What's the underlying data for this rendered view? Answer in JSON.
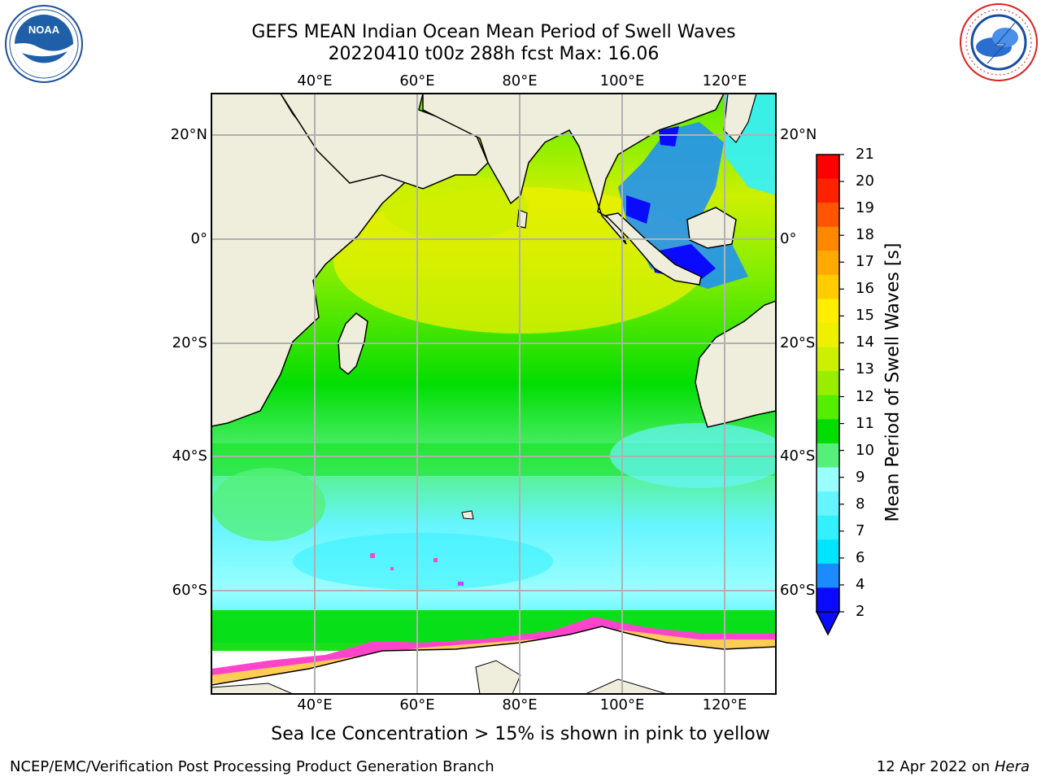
{
  "header": {
    "title_line1": "GEFS MEAN Indian Ocean Mean Period of Swell Waves",
    "title_line2": "20220410 t00z 288h fcst   Max: 16.06"
  },
  "logos": {
    "left": {
      "icon": "noaa-logo",
      "text": "NOAA",
      "ring_text": "NATIONAL OCEANIC AND ATMOSPHERIC ADMINISTRATION · U.S. DEPARTMENT OF COMMERCE"
    },
    "right": {
      "icon": "nws-logo",
      "ring_text": "NATIONAL WEATHER SERVICE"
    }
  },
  "map": {
    "lon_ticks": [
      "40°E",
      "60°E",
      "80°E",
      "100°E",
      "120°E"
    ],
    "lat_ticks": [
      "20°N",
      "0°",
      "20°S",
      "40°S",
      "60°S"
    ],
    "lon_values": [
      40,
      60,
      80,
      100,
      120
    ],
    "lat_values": [
      20,
      0,
      -20,
      -40,
      -60
    ],
    "lon_range": [
      20,
      130
    ],
    "lat_range": [
      28,
      -87
    ],
    "grid": true,
    "colors": {
      "land": "#efeedd",
      "grid": "#b0b0b0",
      "sea_ice": "#ff44cc"
    }
  },
  "colorbar": {
    "label": "Mean Period of Swell Waves [s]",
    "ticks": [
      "2",
      "4",
      "6",
      "7",
      "8",
      "9",
      "10",
      "11",
      "12",
      "13",
      "14",
      "15",
      "16",
      "17",
      "18",
      "19",
      "20",
      "21"
    ],
    "colors": [
      "#0a0aff",
      "#1a8cff",
      "#00e5ff",
      "#33f0ff",
      "#66f5ff",
      "#99ffff",
      "#55f07a",
      "#00dd00",
      "#55ee00",
      "#99ee00",
      "#ccf000",
      "#eef000",
      "#ffee00",
      "#ffcc00",
      "#ffaa00",
      "#ff8800",
      "#ff5500",
      "#ff2200",
      "#ff0000"
    ],
    "extend": "min"
  },
  "caption": "Sea Ice Concentration > 15% is shown in pink to yellow",
  "footer": {
    "left": "NCEP/EMC/Verification Post Processing Product Generation Branch",
    "right_date": "12 Apr 2022 on ",
    "right_machine": "Hera"
  }
}
